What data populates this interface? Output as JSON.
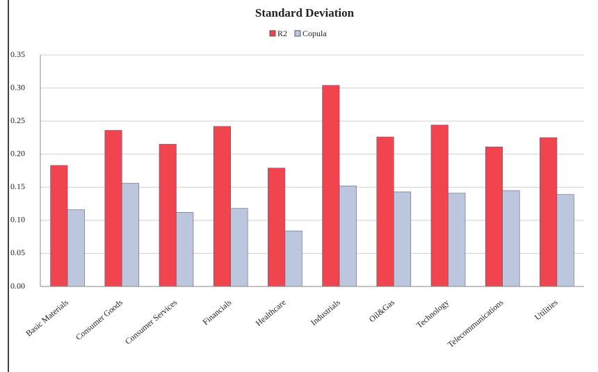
{
  "chart_data": {
    "type": "bar",
    "title": "Standard Deviation",
    "categories": [
      "Basic Materials",
      "Consumer Goods",
      "Consumer Services",
      "Financials",
      "Healthcare",
      "Industrials",
      "Oil&Gas",
      "Technology",
      "Telecommunications",
      "Utilities"
    ],
    "series": [
      {
        "name": "R2",
        "color": "#f0454f",
        "values": [
          0.183,
          0.236,
          0.215,
          0.242,
          0.179,
          0.304,
          0.226,
          0.244,
          0.211,
          0.225
        ]
      },
      {
        "name": "Copula",
        "color": "#bcc6dc",
        "values": [
          0.116,
          0.156,
          0.112,
          0.118,
          0.084,
          0.152,
          0.143,
          0.141,
          0.145,
          0.139
        ]
      }
    ],
    "ylim": [
      0,
      0.35
    ],
    "yticks": [
      {
        "value": 0,
        "label": "0.00"
      },
      {
        "value": 0.05,
        "label": "0.05"
      },
      {
        "value": 0.1,
        "label": "0.10"
      },
      {
        "value": 0.15,
        "label": "0.15"
      },
      {
        "value": 0.2,
        "label": "0.20"
      },
      {
        "value": 0.25,
        "label": "0.25"
      },
      {
        "value": 0.3,
        "label": "0.30"
      },
      {
        "value": 0.35,
        "label": "0.35"
      }
    ],
    "grid": true,
    "legend": "top"
  }
}
